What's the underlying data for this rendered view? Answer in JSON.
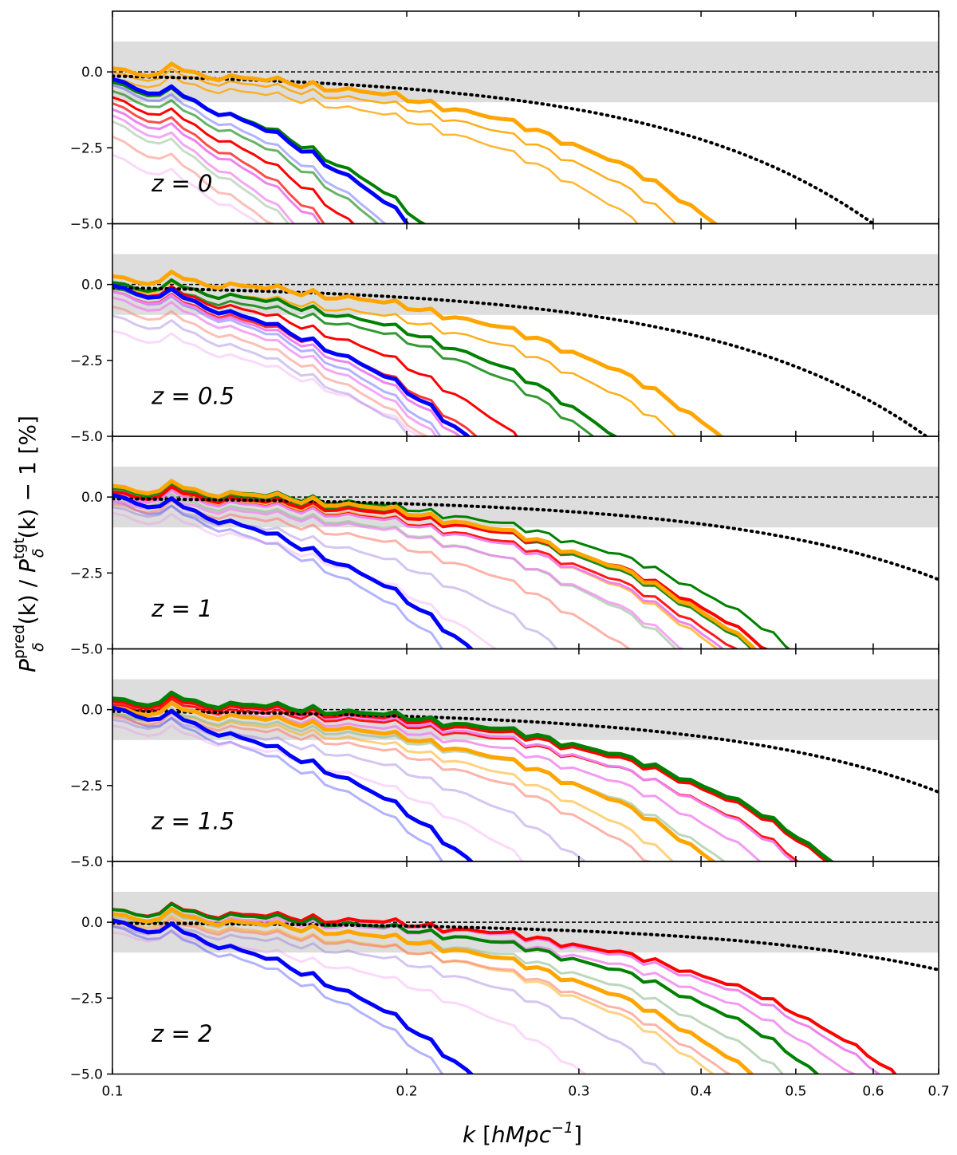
{
  "chart_data": {
    "type": "line",
    "xscale": "log",
    "xlim": [
      0.1,
      0.7
    ],
    "ylim": [
      -5.0,
      2.0
    ],
    "xlabel": "k [hMpc^-1]",
    "xlabel_parts": {
      "k": "k",
      "open": "[",
      "unit": "hMpc",
      "exp": "−1",
      "close": "]"
    },
    "ylabel_parts": {
      "p1": "P",
      "sup1": "pred",
      "sub1": "δ",
      "mid": "(k) / ",
      "p2": "P",
      "sup2": "tgt",
      "sub2": "δ",
      "tail": "(k) − 1 [%]"
    },
    "x_tick_labels": [
      "0.1",
      "0.2",
      "0.3",
      "0.4",
      "0.5",
      "0.6",
      "0.7"
    ],
    "x_ticks": [
      0.1,
      0.2,
      0.3,
      0.4,
      0.5,
      0.6,
      0.7
    ],
    "y_tick_labels": [
      "0.0",
      "−2.5",
      "−5.0"
    ],
    "y_ticks": [
      0.0,
      -2.5,
      -5.0
    ],
    "band": [
      -1.0,
      1.0
    ],
    "reference_line": 0.0,
    "panels": [
      {
        "label": "z = 0",
        "series": [
          {
            "name": "orange-1",
            "color": "#ffa500",
            "width": 5,
            "opacity": 1.0,
            "offset": 0.05,
            "k1": 0.4,
            "p1": 2,
            "k2": 0.6,
            "p2": 4
          },
          {
            "name": "orange-2",
            "color": "#ffa500",
            "width": 2.5,
            "opacity": 0.9,
            "offset": -0.1,
            "k1": 0.37,
            "p1": 2,
            "k2": 0.6,
            "p2": 4
          },
          {
            "name": "orange-3",
            "color": "#ffa500",
            "width": 2.5,
            "opacity": 0.8,
            "offset": -0.3,
            "k1": 0.34,
            "p1": 2,
            "k2": 0.6,
            "p2": 4
          },
          {
            "name": "blue-1",
            "color": "#0000ff",
            "width": 5,
            "opacity": 1.0,
            "offset": -0.3,
            "k1": 0.18,
            "p1": 2,
            "k2": 0.6,
            "p2": 4
          },
          {
            "name": "blue-2",
            "color": "#0000ff",
            "width": 3,
            "opacity": 0.3,
            "offset": -0.5,
            "k1": 0.17,
            "p1": 2,
            "k2": 0.6,
            "p2": 4
          },
          {
            "name": "green-1",
            "color": "#008000",
            "width": 4,
            "opacity": 1.0,
            "offset": -0.4,
            "k1": 0.19,
            "p1": 2,
            "k2": 0.6,
            "p2": 4
          },
          {
            "name": "green-2",
            "color": "#008000",
            "width": 3,
            "opacity": 0.6,
            "offset": -0.7,
            "k1": 0.17,
            "p1": 2,
            "k2": 0.6,
            "p2": 4
          },
          {
            "name": "red-1",
            "color": "#ff0000",
            "width": 3,
            "opacity": 1.0,
            "offset": -0.9,
            "k1": 0.16,
            "p1": 2,
            "k2": 0.6,
            "p2": 4
          },
          {
            "name": "red-2",
            "color": "#ff0000",
            "width": 3,
            "opacity": 0.7,
            "offset": -1.1,
            "k1": 0.15,
            "p1": 2,
            "k2": 0.6,
            "p2": 4
          },
          {
            "name": "violet-1",
            "color": "#ee82ee",
            "width": 3,
            "opacity": 1.0,
            "offset": -1.3,
            "k1": 0.15,
            "p1": 2,
            "k2": 0.6,
            "p2": 4
          },
          {
            "name": "violet-2",
            "color": "#ee82ee",
            "width": 3,
            "opacity": 0.7,
            "offset": -1.5,
            "k1": 0.14,
            "p1": 2,
            "k2": 0.6,
            "p2": 4
          },
          {
            "name": "green-light",
            "color": "#8fbc8f",
            "width": 3,
            "opacity": 0.5,
            "offset": -1.7,
            "k1": 0.14,
            "p1": 2,
            "k2": 0.6,
            "p2": 4
          },
          {
            "name": "salmon-1",
            "color": "#fa8072",
            "width": 3,
            "opacity": 0.5,
            "offset": -2.2,
            "k1": 0.14,
            "p1": 2,
            "k2": 0.6,
            "p2": 4
          },
          {
            "name": "pink-light",
            "color": "#ee82ee",
            "width": 3,
            "opacity": 0.3,
            "offset": -2.8,
            "k1": 0.15,
            "p1": 2,
            "k2": 0.6,
            "p2": 4
          },
          {
            "name": "reference-dotted",
            "color": "#000000",
            "width": 4,
            "opacity": 1.0,
            "dotted": true,
            "offset": 0.0,
            "k1": 0.6,
            "p1": 2,
            "k2": 0.6,
            "p2": 4
          }
        ]
      },
      {
        "label": "z = 0.5",
        "series": [
          {
            "name": "orange-1",
            "color": "#ffa500",
            "width": 5,
            "opacity": 1.0,
            "offset": 0.2,
            "k1": 0.4,
            "p1": 2,
            "k2": 0.6,
            "p2": 4
          },
          {
            "name": "orange-2",
            "color": "#ffa500",
            "width": 2.5,
            "opacity": 0.9,
            "offset": -0.1,
            "k1": 0.37,
            "p1": 2,
            "k2": 0.6,
            "p2": 4
          },
          {
            "name": "green-1",
            "color": "#008000",
            "width": 4,
            "opacity": 1.0,
            "offset": 0.0,
            "k1": 0.31,
            "p1": 2,
            "k2": 0.6,
            "p2": 4
          },
          {
            "name": "green-2",
            "color": "#008000",
            "width": 3,
            "opacity": 0.8,
            "offset": -0.2,
            "k1": 0.3,
            "p1": 2,
            "k2": 0.6,
            "p2": 4
          },
          {
            "name": "blue-1",
            "color": "#0000ff",
            "width": 5,
            "opacity": 1.0,
            "offset": -0.1,
            "k1": 0.21,
            "p1": 2,
            "k2": 0.6,
            "p2": 4
          },
          {
            "name": "blue-2",
            "color": "#0000ff",
            "width": 3,
            "opacity": 0.3,
            "offset": -0.3,
            "k1": 0.2,
            "p1": 2,
            "k2": 0.6,
            "p2": 4
          },
          {
            "name": "red-1",
            "color": "#ff0000",
            "width": 3,
            "opacity": 1.0,
            "offset": -0.1,
            "k1": 0.24,
            "p1": 2,
            "k2": 0.6,
            "p2": 4
          },
          {
            "name": "red-2",
            "color": "#ff0000",
            "width": 3,
            "opacity": 0.8,
            "offset": -0.3,
            "k1": 0.22,
            "p1": 2,
            "k2": 0.6,
            "p2": 4
          },
          {
            "name": "violet-1",
            "color": "#ee82ee",
            "width": 3,
            "opacity": 1.0,
            "offset": -0.3,
            "k1": 0.21,
            "p1": 2,
            "k2": 0.6,
            "p2": 4
          },
          {
            "name": "violet-2",
            "color": "#ee82ee",
            "width": 3,
            "opacity": 0.7,
            "offset": -0.5,
            "k1": 0.2,
            "p1": 2,
            "k2": 0.6,
            "p2": 4
          },
          {
            "name": "salmon-1",
            "color": "#fa8072",
            "width": 3,
            "opacity": 0.5,
            "offset": -0.8,
            "k1": 0.2,
            "p1": 2,
            "k2": 0.6,
            "p2": 4
          },
          {
            "name": "purple-light",
            "color": "#9370db",
            "width": 3,
            "opacity": 0.4,
            "offset": -1.1,
            "k1": 0.2,
            "p1": 2,
            "k2": 0.6,
            "p2": 4
          },
          {
            "name": "pink-light",
            "color": "#ee82ee",
            "width": 3,
            "opacity": 0.3,
            "offset": -1.6,
            "k1": 0.22,
            "p1": 2,
            "k2": 0.6,
            "p2": 4
          },
          {
            "name": "reference-dotted",
            "color": "#000000",
            "width": 4,
            "opacity": 1.0,
            "dotted": true,
            "offset": 0.0,
            "k1": 0.68,
            "p1": 2,
            "k2": 0.6,
            "p2": 4
          }
        ]
      },
      {
        "label": "z = 1",
        "series": [
          {
            "name": "green-1",
            "color": "#008000",
            "width": 3,
            "opacity": 1.0,
            "offset": 0.3,
            "k1": 0.47,
            "p1": 2,
            "k2": 0.6,
            "p2": 4
          },
          {
            "name": "green-2",
            "color": "#008000",
            "width": 3,
            "opacity": 0.9,
            "offset": 0.2,
            "k1": 0.43,
            "p1": 2,
            "k2": 0.6,
            "p2": 4
          },
          {
            "name": "red-1",
            "color": "#ff0000",
            "width": 4,
            "opacity": 1.0,
            "offset": 0.1,
            "k1": 0.45,
            "p1": 2,
            "k2": 0.6,
            "p2": 4
          },
          {
            "name": "red-2",
            "color": "#ff0000",
            "width": 3,
            "opacity": 0.9,
            "offset": 0.0,
            "k1": 0.42,
            "p1": 2,
            "k2": 0.6,
            "p2": 4
          },
          {
            "name": "orange-1",
            "color": "#ffa500",
            "width": 5,
            "opacity": 1.0,
            "offset": 0.3,
            "k1": 0.43,
            "p1": 2,
            "k2": 0.6,
            "p2": 4
          },
          {
            "name": "orange-2",
            "color": "#ffa500",
            "width": 3,
            "opacity": 0.7,
            "offset": 0.1,
            "k1": 0.4,
            "p1": 2,
            "k2": 0.6,
            "p2": 4
          },
          {
            "name": "violet-1",
            "color": "#ee82ee",
            "width": 3,
            "opacity": 1.0,
            "offset": 0.0,
            "k1": 0.41,
            "p1": 2,
            "k2": 0.6,
            "p2": 4
          },
          {
            "name": "violet-2",
            "color": "#ee82ee",
            "width": 3,
            "opacity": 0.7,
            "offset": -0.2,
            "k1": 0.38,
            "p1": 2,
            "k2": 0.6,
            "p2": 4
          },
          {
            "name": "green-light",
            "color": "#8fbc8f",
            "width": 3,
            "opacity": 0.6,
            "offset": -0.1,
            "k1": 0.37,
            "p1": 2,
            "k2": 0.6,
            "p2": 4
          },
          {
            "name": "salmon-1",
            "color": "#fa8072",
            "width": 3,
            "opacity": 0.6,
            "offset": -0.3,
            "k1": 0.33,
            "p1": 2,
            "k2": 0.6,
            "p2": 4
          },
          {
            "name": "purple-light",
            "color": "#9370db",
            "width": 3,
            "opacity": 0.4,
            "offset": -0.4,
            "k1": 0.28,
            "p1": 2,
            "k2": 0.6,
            "p2": 4
          },
          {
            "name": "blue-1",
            "color": "#0000ff",
            "width": 5,
            "opacity": 1.0,
            "offset": 0.0,
            "k1": 0.21,
            "p1": 2,
            "k2": 0.6,
            "p2": 4
          },
          {
            "name": "blue-2",
            "color": "#0000ff",
            "width": 3,
            "opacity": 0.3,
            "offset": -0.2,
            "k1": 0.2,
            "p1": 2,
            "k2": 0.6,
            "p2": 4
          },
          {
            "name": "pink-light",
            "color": "#ee82ee",
            "width": 3,
            "opacity": 0.3,
            "offset": -0.6,
            "k1": 0.24,
            "p1": 2,
            "k2": 0.6,
            "p2": 4
          },
          {
            "name": "reference-dotted",
            "color": "#000000",
            "width": 4,
            "opacity": 1.0,
            "dotted": true,
            "offset": 0.0,
            "k1": 0.95,
            "p1": 2,
            "k2": 0.6,
            "p2": 4
          }
        ]
      },
      {
        "label": "z = 1.5",
        "series": [
          {
            "name": "green-1",
            "color": "#008000",
            "width": 5,
            "opacity": 1.0,
            "offset": 0.3,
            "k1": 0.52,
            "p1": 2,
            "k2": 0.6,
            "p2": 4
          },
          {
            "name": "red-1",
            "color": "#ff0000",
            "width": 4,
            "opacity": 1.0,
            "offset": 0.2,
            "k1": 0.52,
            "p1": 2,
            "k2": 0.6,
            "p2": 4
          },
          {
            "name": "red-2",
            "color": "#ff0000",
            "width": 3,
            "opacity": 0.9,
            "offset": 0.1,
            "k1": 0.49,
            "p1": 2,
            "k2": 0.6,
            "p2": 4
          },
          {
            "name": "violet-1",
            "color": "#ee82ee",
            "width": 3,
            "opacity": 1.0,
            "offset": 0.2,
            "k1": 0.48,
            "p1": 2,
            "k2": 0.6,
            "p2": 4
          },
          {
            "name": "violet-2",
            "color": "#ee82ee",
            "width": 3,
            "opacity": 0.8,
            "offset": 0.0,
            "k1": 0.45,
            "p1": 2,
            "k2": 0.6,
            "p2": 4
          },
          {
            "name": "green-light",
            "color": "#8fbc8f",
            "width": 3,
            "opacity": 0.6,
            "offset": -0.2,
            "k1": 0.42,
            "p1": 2,
            "k2": 0.6,
            "p2": 4
          },
          {
            "name": "orange-1",
            "color": "#ffa500",
            "width": 5,
            "opacity": 1.0,
            "offset": 0.0,
            "k1": 0.4,
            "p1": 2,
            "k2": 0.6,
            "p2": 4
          },
          {
            "name": "orange-2",
            "color": "#ffa500",
            "width": 3,
            "opacity": 0.5,
            "offset": -0.2,
            "k1": 0.37,
            "p1": 2,
            "k2": 0.6,
            "p2": 4
          },
          {
            "name": "salmon-1",
            "color": "#fa8072",
            "width": 3,
            "opacity": 0.6,
            "offset": -0.3,
            "k1": 0.35,
            "p1": 2,
            "k2": 0.6,
            "p2": 4
          },
          {
            "name": "purple-light",
            "color": "#9370db",
            "width": 3,
            "opacity": 0.4,
            "offset": -0.4,
            "k1": 0.3,
            "p1": 2,
            "k2": 0.6,
            "p2": 4
          },
          {
            "name": "blue-1",
            "color": "#0000ff",
            "width": 5,
            "opacity": 1.0,
            "offset": 0.0,
            "k1": 0.21,
            "p1": 2,
            "k2": 0.6,
            "p2": 4
          },
          {
            "name": "blue-2",
            "color": "#0000ff",
            "width": 3,
            "opacity": 0.3,
            "offset": -0.2,
            "k1": 0.2,
            "p1": 2,
            "k2": 0.6,
            "p2": 4
          },
          {
            "name": "pink-light",
            "color": "#ee82ee",
            "width": 3,
            "opacity": 0.3,
            "offset": -0.6,
            "k1": 0.26,
            "p1": 2,
            "k2": 0.6,
            "p2": 4
          },
          {
            "name": "reference-dotted",
            "color": "#000000",
            "width": 4,
            "opacity": 1.0,
            "dotted": true,
            "offset": 0.0,
            "k1": 0.95,
            "p1": 2,
            "k2": 0.6,
            "p2": 4
          }
        ]
      },
      {
        "label": "z = 2",
        "series": [
          {
            "name": "red-1",
            "color": "#ff0000",
            "width": 4,
            "opacity": 1.0,
            "offset": 0.35,
            "k1": 0.6,
            "p1": 2,
            "k2": 0.6,
            "p2": 4
          },
          {
            "name": "violet-1",
            "color": "#ee82ee",
            "width": 3,
            "opacity": 1.0,
            "offset": 0.35,
            "k1": 0.58,
            "p1": 2,
            "k2": 0.6,
            "p2": 4
          },
          {
            "name": "violet-2",
            "color": "#ee82ee",
            "width": 3,
            "opacity": 0.8,
            "offset": 0.2,
            "k1": 0.55,
            "p1": 2,
            "k2": 0.6,
            "p2": 4
          },
          {
            "name": "green-1",
            "color": "#008000",
            "width": 4,
            "opacity": 1.0,
            "offset": 0.35,
            "k1": 0.5,
            "p1": 2,
            "k2": 0.6,
            "p2": 4
          },
          {
            "name": "green-light",
            "color": "#8fbc8f",
            "width": 3,
            "opacity": 0.6,
            "offset": 0.1,
            "k1": 0.47,
            "p1": 2,
            "k2": 0.6,
            "p2": 4
          },
          {
            "name": "orange-1",
            "color": "#ffa500",
            "width": 5,
            "opacity": 1.0,
            "offset": 0.2,
            "k1": 0.43,
            "p1": 2,
            "k2": 0.6,
            "p2": 4
          },
          {
            "name": "orange-2",
            "color": "#ffa500",
            "width": 3,
            "opacity": 0.5,
            "offset": 0.0,
            "k1": 0.4,
            "p1": 2,
            "k2": 0.6,
            "p2": 4
          },
          {
            "name": "salmon-1",
            "color": "#fa8072",
            "width": 3,
            "opacity": 0.6,
            "offset": -0.1,
            "k1": 0.42,
            "p1": 2,
            "k2": 0.6,
            "p2": 4
          },
          {
            "name": "purple-light",
            "color": "#9370db",
            "width": 3,
            "opacity": 0.4,
            "offset": -0.2,
            "k1": 0.36,
            "p1": 2,
            "k2": 0.6,
            "p2": 4
          },
          {
            "name": "blue-1",
            "color": "#0000ff",
            "width": 5,
            "opacity": 1.0,
            "offset": 0.0,
            "k1": 0.21,
            "p1": 2,
            "k2": 0.6,
            "p2": 4
          },
          {
            "name": "blue-2",
            "color": "#0000ff",
            "width": 3,
            "opacity": 0.3,
            "offset": -0.2,
            "k1": 0.2,
            "p1": 2,
            "k2": 0.6,
            "p2": 4
          },
          {
            "name": "pink-light",
            "color": "#ee82ee",
            "width": 3,
            "opacity": 0.3,
            "offset": -0.4,
            "k1": 0.3,
            "p1": 2,
            "k2": 0.6,
            "p2": 4
          },
          {
            "name": "reference-dotted",
            "color": "#000000",
            "width": 4,
            "opacity": 1.0,
            "dotted": true,
            "offset": 0.0,
            "k1": 1.25,
            "p1": 2,
            "k2": 0.6,
            "p2": 4
          }
        ]
      }
    ],
    "colors": {
      "band": "#dddddd",
      "axis": "#000000"
    }
  }
}
